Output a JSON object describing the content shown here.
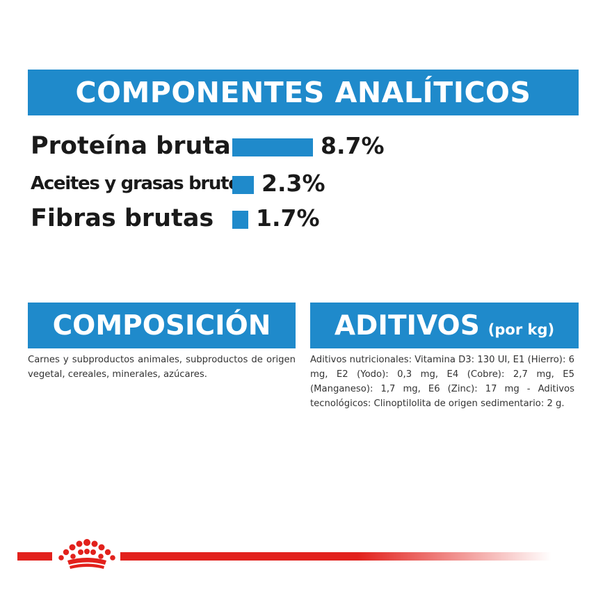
{
  "analytic": {
    "title": "COMPONENTES ANALÍTICOS",
    "rows": [
      {
        "label": "Proteína bruta",
        "value": "8.7%",
        "percent": 8.7
      },
      {
        "label": "Aceites y grasas brutos",
        "value": "2.3%",
        "percent": 2.3
      },
      {
        "label": "Fibras brutas",
        "value": "1.7%",
        "percent": 1.7
      }
    ]
  },
  "composition": {
    "title": "COMPOSICIÓN",
    "text": "Carnes y subproductos animales, subproductos de origen vegetal, cereales, minerales, azúcares."
  },
  "additives": {
    "title": "ADITIVOS",
    "unit": "(por kg)",
    "text": "Aditivos nutricionales: Vitamina D3: 130 UI, E1 (Hierro): 6 mg, E2 (Yodo): 0,3 mg, E4 (Cobre): 2,7 mg, E5 (Manganeso): 1,7 mg, E6 (Zinc): 17 mg - Aditivos tecnológicos: Clinoptilolita de origen sedimentario: 2 g."
  },
  "colors": {
    "accent": "#1f8acb",
    "brand_red": "#e2211c"
  },
  "footer": {
    "logo_icon": "crown-icon"
  }
}
